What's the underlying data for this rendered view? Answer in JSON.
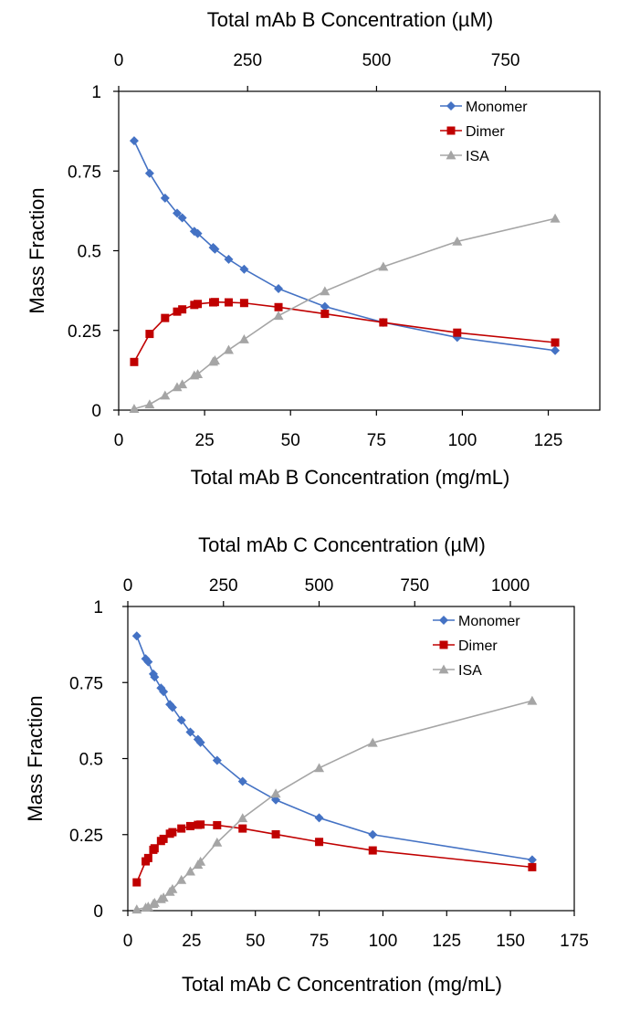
{
  "chart_data": [
    {
      "type": "line",
      "xlabel": "Total mAb B Concentration (mg/mL)",
      "x2label": "Total  mAb B Concentration (µM)",
      "ylabel": "Mass Fraction",
      "xlim": [
        0,
        140
      ],
      "x2lim": [
        0,
        933
      ],
      "ylim": [
        0,
        1
      ],
      "x_ticks": [
        0,
        25,
        50,
        75,
        100,
        125
      ],
      "x_tick_labels": [
        "0",
        "25",
        "50",
        "75",
        "100",
        "125"
      ],
      "x2_ticks": [
        0,
        250,
        500,
        750
      ],
      "x2_tick_labels": [
        "0",
        "250",
        "500",
        "750"
      ],
      "y_ticks": [
        0,
        0.25,
        0.5,
        0.75,
        1
      ],
      "y_tick_labels": [
        "0",
        "0.25",
        "0.5",
        "0.75",
        "1"
      ],
      "legend_position": "top-right",
      "grid": false,
      "series": [
        {
          "name": "Monomer",
          "color": "#4472C4",
          "marker": "diamond",
          "x": [
            4.5,
            9,
            13.5,
            17,
            18.5,
            22,
            23,
            27.5,
            28,
            32,
            36.5,
            46.5,
            60,
            77,
            98.5,
            127
          ],
          "y": [
            0.845,
            0.743,
            0.665,
            0.618,
            0.603,
            0.561,
            0.554,
            0.51,
            0.505,
            0.473,
            0.442,
            0.381,
            0.325,
            0.275,
            0.228,
            0.187
          ]
        },
        {
          "name": "Dimer",
          "color": "#C00000",
          "marker": "square",
          "x": [
            4.5,
            9,
            13.5,
            17,
            18.5,
            22,
            23,
            27.5,
            28,
            32,
            36.5,
            46.5,
            60,
            77,
            98.5,
            127
          ],
          "y": [
            0.151,
            0.239,
            0.289,
            0.309,
            0.316,
            0.33,
            0.333,
            0.338,
            0.339,
            0.338,
            0.336,
            0.323,
            0.302,
            0.275,
            0.243,
            0.212
          ]
        },
        {
          "name": "ISA",
          "color": "#A5A5A5",
          "marker": "triangle",
          "x": [
            4.5,
            9,
            13.5,
            17,
            18.5,
            22,
            23,
            27.5,
            28,
            32,
            36.5,
            46.5,
            60,
            77,
            98.5,
            127
          ],
          "y": [
            0.004,
            0.018,
            0.046,
            0.072,
            0.081,
            0.109,
            0.113,
            0.152,
            0.156,
            0.189,
            0.222,
            0.296,
            0.373,
            0.45,
            0.529,
            0.601
          ]
        }
      ]
    },
    {
      "type": "line",
      "xlabel": "Total mAb C Concentration (mg/mL)",
      "x2label": "Total mAb C Concentration (µM)",
      "ylabel": "Mass Fraction",
      "xlim": [
        0,
        175
      ],
      "x2lim": [
        0,
        1167
      ],
      "ylim": [
        0,
        1
      ],
      "x_ticks": [
        0,
        25,
        50,
        75,
        100,
        125,
        150,
        175
      ],
      "x_tick_labels": [
        "0",
        "25",
        "50",
        "75",
        "100",
        "125",
        "150",
        "175"
      ],
      "x2_ticks": [
        0,
        250,
        500,
        750,
        1000
      ],
      "x2_tick_labels": [
        "0",
        "250",
        "500",
        "750",
        "1000"
      ],
      "y_ticks": [
        0,
        0.25,
        0.5,
        0.75,
        1
      ],
      "y_tick_labels": [
        "0",
        "0.25",
        "0.5",
        "0.75",
        "1"
      ],
      "legend_position": "top-right",
      "grid": false,
      "series": [
        {
          "name": "Monomer",
          "color": "#4472C4",
          "marker": "diamond",
          "x": [
            3.5,
            7,
            8,
            10,
            10.5,
            13,
            14,
            16.5,
            17.5,
            21,
            24.5,
            27.5,
            28.5,
            35,
            45,
            58,
            75,
            96,
            158.5
          ],
          "y": [
            0.903,
            0.828,
            0.818,
            0.778,
            0.768,
            0.732,
            0.72,
            0.678,
            0.668,
            0.626,
            0.587,
            0.563,
            0.553,
            0.494,
            0.425,
            0.364,
            0.305,
            0.25,
            0.167
          ]
        },
        {
          "name": "Dimer",
          "color": "#C00000",
          "marker": "square",
          "x": [
            3.5,
            7,
            8,
            10,
            10.5,
            13,
            14,
            16.5,
            17.5,
            21,
            24.5,
            27.5,
            28.5,
            35,
            45,
            58,
            75,
            96,
            158.5
          ],
          "y": [
            0.093,
            0.162,
            0.173,
            0.2,
            0.205,
            0.229,
            0.236,
            0.253,
            0.258,
            0.27,
            0.278,
            0.282,
            0.283,
            0.281,
            0.27,
            0.251,
            0.226,
            0.198,
            0.143
          ]
        },
        {
          "name": "ISA",
          "color": "#A5A5A5",
          "marker": "triangle",
          "x": [
            3.5,
            7,
            8,
            10,
            10.5,
            13,
            14,
            16.5,
            17.5,
            21,
            24.5,
            27.5,
            28.5,
            35,
            45,
            58,
            75,
            96,
            158.5
          ],
          "y": [
            0.004,
            0.01,
            0.013,
            0.022,
            0.026,
            0.038,
            0.043,
            0.062,
            0.071,
            0.101,
            0.129,
            0.151,
            0.161,
            0.224,
            0.304,
            0.385,
            0.469,
            0.552,
            0.69
          ]
        }
      ]
    }
  ]
}
